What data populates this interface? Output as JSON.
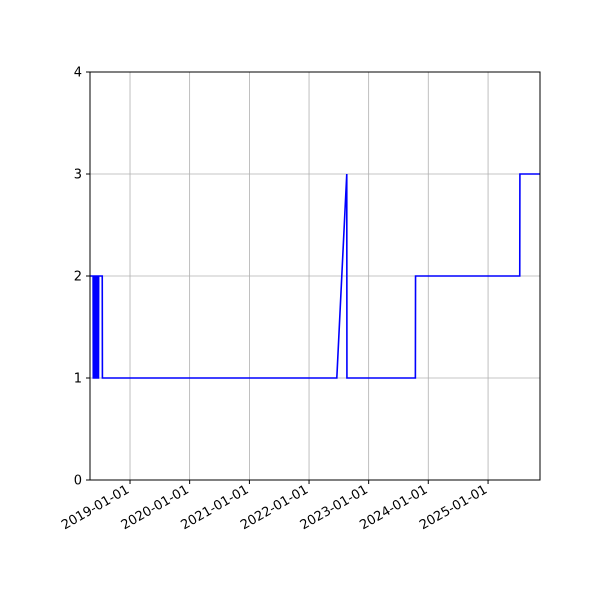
{
  "chart_data": {
    "type": "line",
    "title": "",
    "xlabel": "",
    "ylabel": "",
    "x_axis_type": "date",
    "xlim": [
      "2018-05-01",
      "2025-11-15"
    ],
    "ylim": [
      0,
      4
    ],
    "grid": true,
    "legend": "none",
    "colors": {
      "line": "#0000ff",
      "grid": "#b0b0b0"
    },
    "y_ticks": [
      "0",
      "1",
      "2",
      "3",
      "4"
    ],
    "x_ticks": [
      {
        "date": "2019-01-01",
        "label": "2019-01-01"
      },
      {
        "date": "2020-01-01",
        "label": "2020-01-01"
      },
      {
        "date": "2021-01-01",
        "label": "2021-01-01"
      },
      {
        "date": "2022-01-01",
        "label": "2022-01-01"
      },
      {
        "date": "2023-01-01",
        "label": "2023-01-01"
      },
      {
        "date": "2024-01-01",
        "label": "2024-01-01"
      },
      {
        "date": "2025-01-01",
        "label": "2025-01-01"
      }
    ],
    "series": [
      {
        "x": [
          "2018-05-01",
          "2018-05-20",
          "2018-05-21",
          "2018-05-28",
          "2018-05-29",
          "2018-06-04",
          "2018-06-05",
          "2018-06-10",
          "2018-06-11",
          "2018-06-16",
          "2018-06-17",
          "2018-06-22",
          "2018-06-23",
          "2018-07-15",
          "2018-07-16",
          "2022-06-20",
          "2022-08-20",
          "2022-08-21",
          "2023-10-14",
          "2023-10-15",
          "2025-07-14",
          "2025-07-15",
          "2025-11-15"
        ],
        "y": [
          2,
          2,
          1,
          1,
          2,
          2,
          1,
          1,
          2,
          2,
          1,
          1,
          2,
          2,
          1,
          1,
          3,
          1,
          1,
          2,
          2,
          3,
          3
        ]
      }
    ]
  }
}
